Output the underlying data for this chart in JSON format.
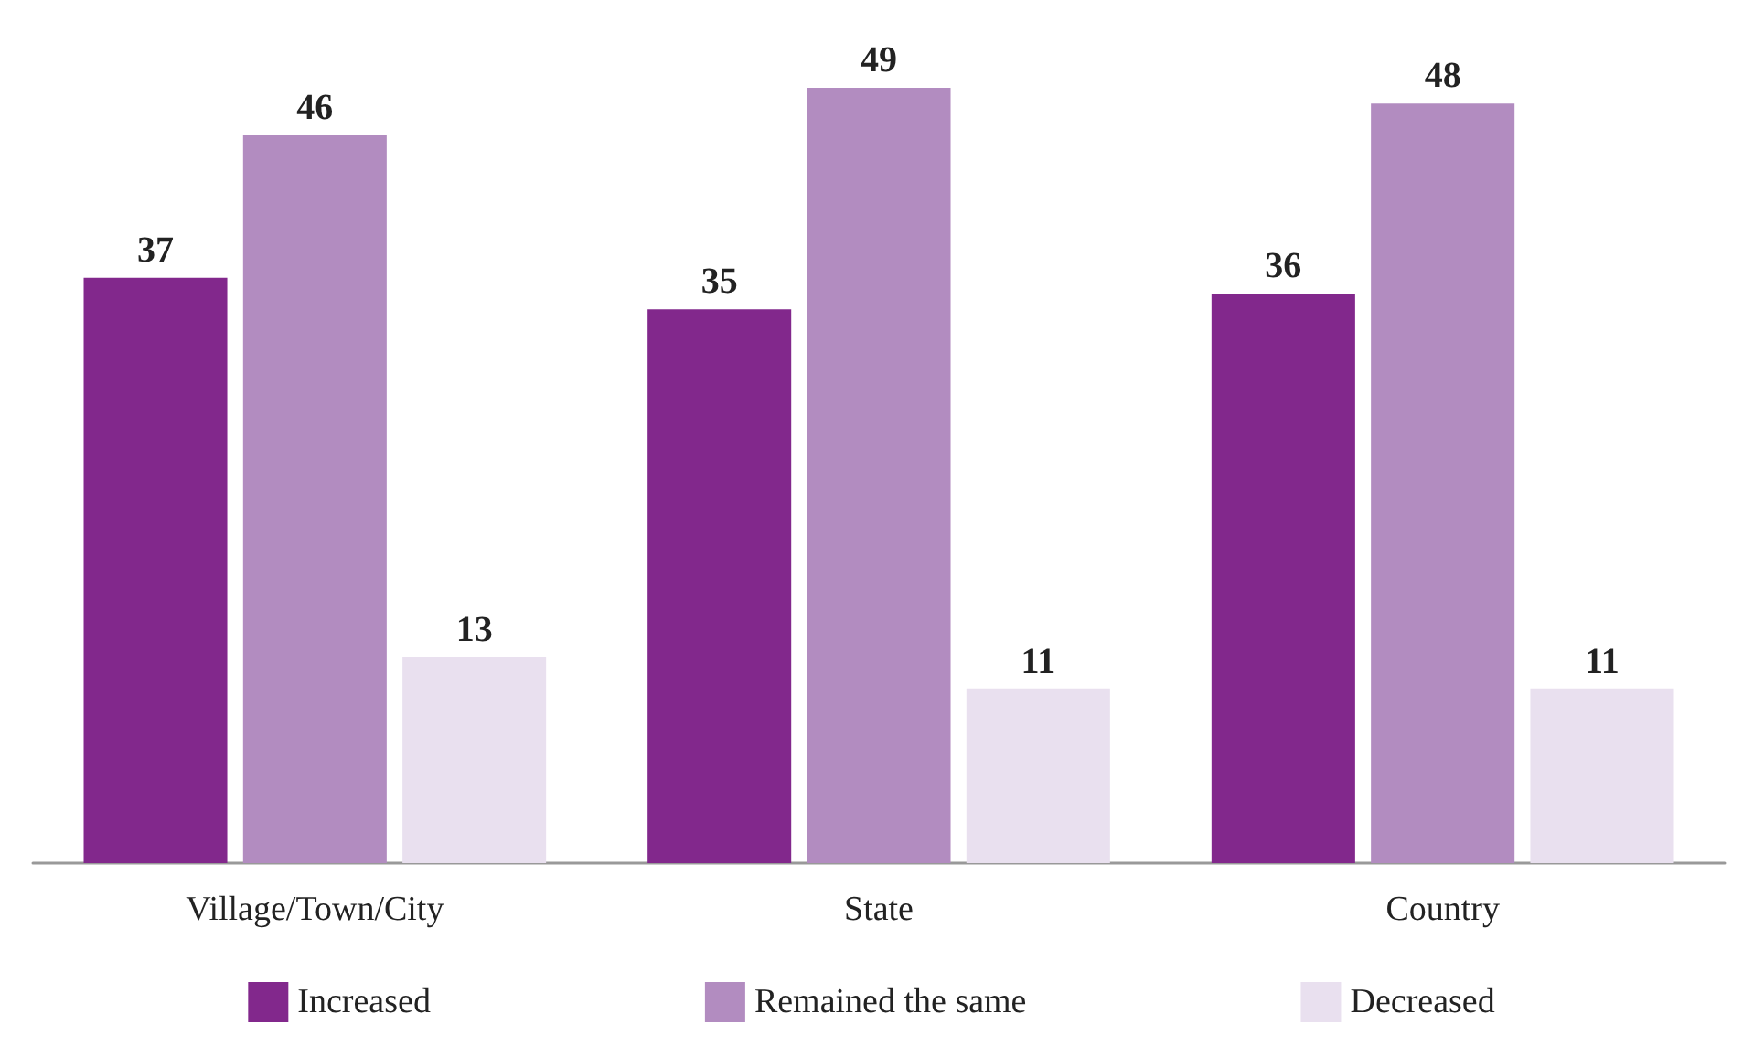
{
  "chart_data": {
    "type": "bar",
    "categories": [
      "Village/Town/City",
      "State",
      "Country"
    ],
    "series": [
      {
        "name": "Increased",
        "color": "#82288c",
        "values": [
          37,
          35,
          36
        ]
      },
      {
        "name": "Remained the same",
        "color": "#b28cc0",
        "values": [
          46,
          49,
          48
        ]
      },
      {
        "name": "Decreased",
        "color": "#e9e0ef",
        "values": [
          13,
          11,
          11
        ]
      }
    ],
    "data_labels": true,
    "legend": "bottom",
    "grid": false
  }
}
